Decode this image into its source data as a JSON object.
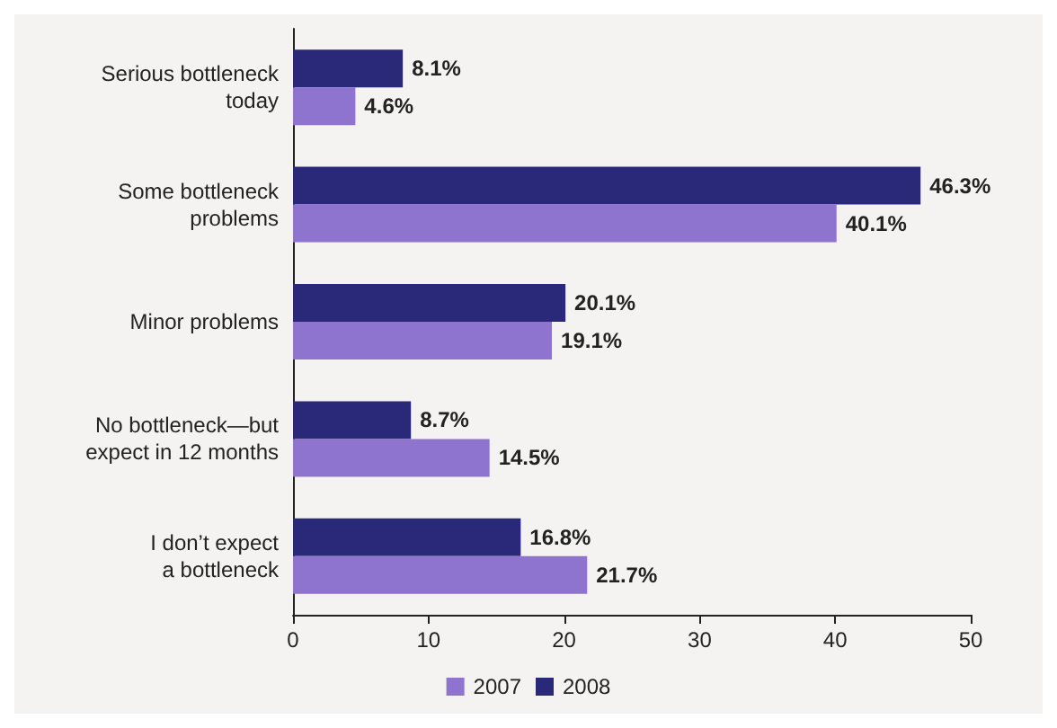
{
  "chart_data": {
    "type": "bar",
    "orientation": "horizontal",
    "categories": [
      "Serious bottleneck\ntoday",
      "Some bottleneck\nproblems",
      "Minor problems",
      "No bottleneck—but\nexpect in 12 months",
      "I don’t expect\na bottleneck"
    ],
    "series": [
      {
        "name": "2007",
        "color": "#8e74cf",
        "values": [
          4.6,
          40.1,
          19.1,
          14.5,
          21.7
        ],
        "value_labels": [
          "4.6%",
          "40.1%",
          "19.1%",
          "14.5%",
          "21.7%"
        ]
      },
      {
        "name": "2008",
        "color": "#2a2878",
        "values": [
          8.1,
          46.3,
          20.1,
          8.7,
          16.8
        ],
        "value_labels": [
          "8.1%",
          "46.3%",
          "20.1%",
          "8.7%",
          "16.8%"
        ]
      }
    ],
    "xlim": [
      0,
      50
    ],
    "xticks": [
      0,
      10,
      20,
      30,
      40,
      50
    ],
    "grid": false,
    "legend": "bottom"
  }
}
